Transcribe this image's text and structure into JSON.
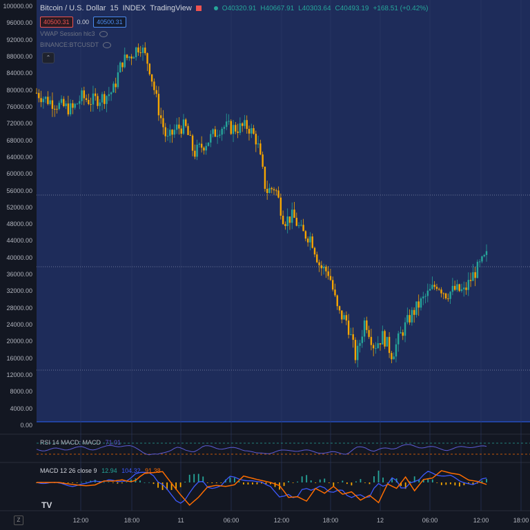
{
  "legend": {
    "title": "Bitcoin / U.S. Dollar",
    "interval": "15",
    "exchange": "INDEX",
    "source": "TradingView",
    "open": "O40320.91",
    "high": "H40667.91",
    "low": "L40303.64",
    "close": "C40493.19",
    "change": "+168.51 (+0.42%)",
    "bid": "40500.31",
    "spread": "0.00",
    "ask": "40500.31",
    "indicator1": "VWAP Session hlc3",
    "indicator2": "BINANCE:BTCUSDT",
    "rsi_label": "RSI 14 MACD: MACD",
    "rsi_value": "71.01",
    "macd_label": "MACD 12 26 close 9",
    "macd_v1": "12.94",
    "macd_v2": "104.32",
    "macd_v3": "91.38"
  },
  "colors": {
    "up": "#26a69a",
    "down": "#f7a600",
    "background": "#131722",
    "main_area": "#1e2c5a",
    "macd_line": "#3d5afe",
    "signal_line": "#ff6d00",
    "rsi_line": "#5e5bd6"
  },
  "chart_data": {
    "type": "candlestick",
    "title": "Bitcoin / U.S. Dollar",
    "y_ticks": [
      "100000.00",
      "96000.00",
      "92000.00",
      "88000.00",
      "84000.00",
      "80000.00",
      "76000.00",
      "72000.00",
      "68000.00",
      "64000.00",
      "60000.00",
      "56000.00",
      "52000.00",
      "48000.00",
      "44000.00",
      "40000.00",
      "36000.00",
      "32000.00",
      "28000.00",
      "24000.00",
      "20000.00",
      "16000.00",
      "12000.00",
      "8000.00",
      "4000.00",
      "0.00"
    ],
    "ylim": [
      0,
      100000
    ],
    "x_ticks": [
      "12:00",
      "18:00",
      "11",
      "06:00",
      "12:00",
      "18:00",
      "12",
      "06:00",
      "12:00",
      "18:00"
    ],
    "close_series": [
      {
        "t": 0,
        "v": 79500
      },
      {
        "t": 0.02,
        "v": 78000
      },
      {
        "t": 0.05,
        "v": 76500
      },
      {
        "t": 0.08,
        "v": 75500
      },
      {
        "t": 0.1,
        "v": 78500
      },
      {
        "t": 0.12,
        "v": 77500
      },
      {
        "t": 0.15,
        "v": 78500
      },
      {
        "t": 0.17,
        "v": 80000
      },
      {
        "t": 0.19,
        "v": 87000
      },
      {
        "t": 0.21,
        "v": 88500
      },
      {
        "t": 0.23,
        "v": 91000
      },
      {
        "t": 0.25,
        "v": 86000
      },
      {
        "t": 0.27,
        "v": 76000
      },
      {
        "t": 0.29,
        "v": 68000
      },
      {
        "t": 0.31,
        "v": 71000
      },
      {
        "t": 0.33,
        "v": 71500
      },
      {
        "t": 0.35,
        "v": 65000
      },
      {
        "t": 0.38,
        "v": 68000
      },
      {
        "t": 0.41,
        "v": 71500
      },
      {
        "t": 0.44,
        "v": 71000
      },
      {
        "t": 0.47,
        "v": 71500
      },
      {
        "t": 0.49,
        "v": 68000
      },
      {
        "t": 0.51,
        "v": 56000
      },
      {
        "t": 0.53,
        "v": 57000
      },
      {
        "t": 0.55,
        "v": 49000
      },
      {
        "t": 0.57,
        "v": 50000
      },
      {
        "t": 0.59,
        "v": 46000
      },
      {
        "t": 0.61,
        "v": 45000
      },
      {
        "t": 0.63,
        "v": 38000
      },
      {
        "t": 0.65,
        "v": 36500
      },
      {
        "t": 0.67,
        "v": 27000
      },
      {
        "t": 0.69,
        "v": 25000
      },
      {
        "t": 0.71,
        "v": 16000
      },
      {
        "t": 0.73,
        "v": 25500
      },
      {
        "t": 0.75,
        "v": 19000
      },
      {
        "t": 0.77,
        "v": 21500
      },
      {
        "t": 0.79,
        "v": 17000
      },
      {
        "t": 0.81,
        "v": 22000
      },
      {
        "t": 0.83,
        "v": 26000
      },
      {
        "t": 0.85,
        "v": 29000
      },
      {
        "t": 0.87,
        "v": 31500
      },
      {
        "t": 0.89,
        "v": 34000
      },
      {
        "t": 0.91,
        "v": 31500
      },
      {
        "t": 0.93,
        "v": 32500
      },
      {
        "t": 0.95,
        "v": 32000
      },
      {
        "t": 0.97,
        "v": 36000
      },
      {
        "t": 1.0,
        "v": 40500
      }
    ]
  }
}
